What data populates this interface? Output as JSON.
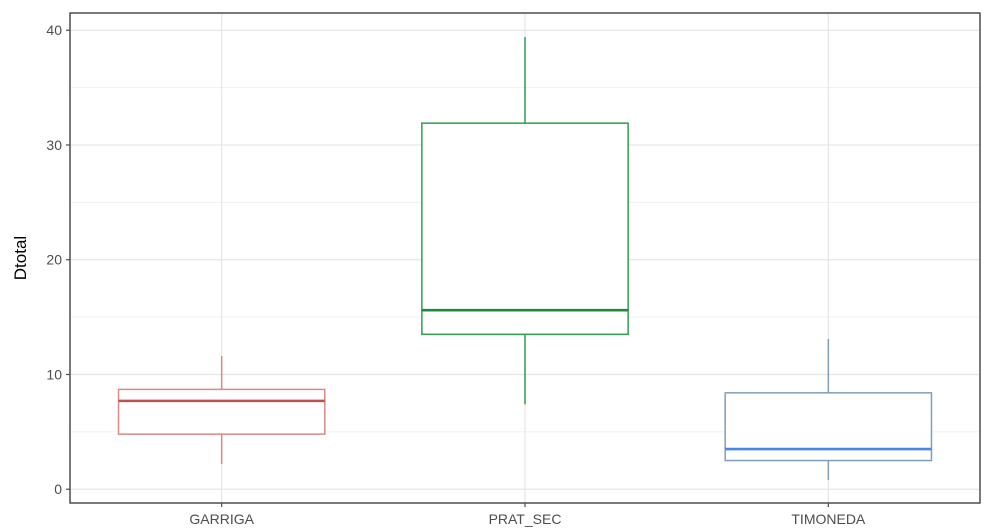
{
  "chart_data": {
    "type": "boxplot",
    "ylabel": "Dtotal",
    "xlabel": "",
    "ylim": [
      -1.2,
      41.5
    ],
    "yticks": [
      0,
      10,
      20,
      30,
      40
    ],
    "ytick_labels": [
      "0",
      "10",
      "20",
      "30",
      "40"
    ],
    "grid": true,
    "categories": [
      "GARRIGA",
      "PRAT_SEC",
      "TIMONEDA"
    ],
    "boxes": [
      {
        "category": "GARRIGA",
        "whisker_low": 2.2,
        "q1": 4.8,
        "median": 7.7,
        "q3": 8.7,
        "whisker_high": 11.6,
        "color": "#d98a84",
        "median_color": "#c0504d"
      },
      {
        "category": "PRAT_SEC",
        "whisker_low": 7.4,
        "q1": 13.5,
        "median": 15.6,
        "q3": 31.9,
        "whisker_high": 39.4,
        "color": "#2f9e4f",
        "median_color": "#1f8a3c"
      },
      {
        "category": "TIMONEDA",
        "whisker_low": 0.8,
        "q1": 2.5,
        "median": 3.5,
        "q3": 8.4,
        "whisker_high": 13.1,
        "color": "#7f9fb8",
        "median_color": "#4a86e8"
      }
    ]
  }
}
